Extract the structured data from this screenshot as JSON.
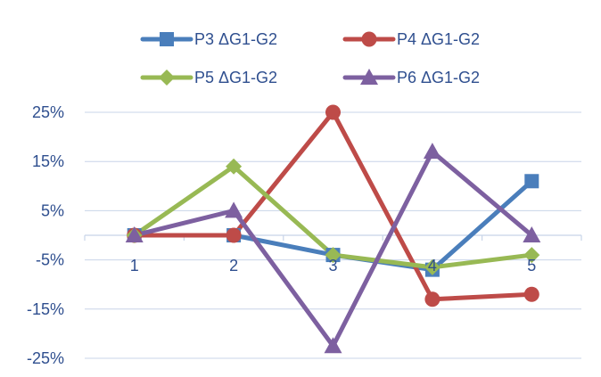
{
  "chart_data": {
    "type": "line",
    "title": "",
    "xlabel": "",
    "ylabel": "",
    "categories": [
      "1",
      "2",
      "3",
      "4",
      "5"
    ],
    "y_tick_labels": [
      "25%",
      "15%",
      "5%",
      "-5%",
      "-15%",
      "-25%"
    ],
    "y_ticks": [
      25,
      15,
      5,
      -5,
      -15,
      -25
    ],
    "ylim": [
      -25,
      25
    ],
    "grid": "horizontal",
    "legend_position": "top",
    "series": [
      {
        "name": "P3 ΔG1-G2",
        "values": [
          0,
          0,
          -4,
          -7,
          11
        ],
        "color": "#4a7ebb",
        "marker": "square"
      },
      {
        "name": "P4 ΔG1-G2",
        "values": [
          0,
          0,
          25,
          -13,
          -12
        ],
        "color": "#be4b48",
        "marker": "circle"
      },
      {
        "name": "P5 ΔG1-G2",
        "values": [
          0,
          14,
          -4,
          -6.5,
          -4
        ],
        "color": "#98b954",
        "marker": "diamond"
      },
      {
        "name": "P6 ΔG1-G2",
        "values": [
          0,
          5,
          -22.5,
          17,
          0
        ],
        "color": "#7d60a0",
        "marker": "triangle"
      }
    ]
  }
}
